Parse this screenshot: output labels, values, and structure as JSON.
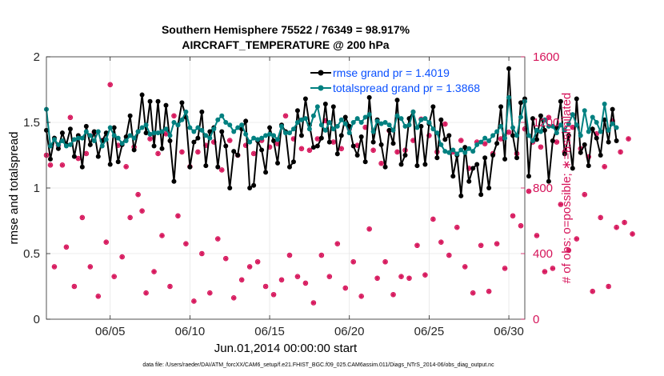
{
  "chart_data": {
    "type": "line",
    "title_line1": "Southern Hemisphere 75522 / 76349 = 98.917%",
    "title_line2": "AIRCRAFT_TEMPERATURE @ 200 hPa",
    "ylabel": "rmse and totalspread",
    "ylabel_right": "# of obs: o=possible; ∗=assimilated",
    "xlabel": "Jun.01,2014 00:00:00 start",
    "footnote": "data file: /Users/raeder/DAI/ATM_forcXX/CAM6_setup/f.e21.FHIST_BGC.f09_025.CAM6assim.011/Diags_NTrS_2014-06/obs_diag_output.nc",
    "xlim": [
      1.0,
      31.0
    ],
    "ylim": [
      0,
      2
    ],
    "ylim_right": [
      0,
      1600
    ],
    "x_ticks": [
      5,
      10,
      15,
      20,
      25,
      30
    ],
    "x_tick_labels": [
      "06/05",
      "06/10",
      "06/15",
      "06/20",
      "06/25",
      "06/30"
    ],
    "y_tick_labels": [
      "0",
      "0.5",
      "1",
      "1.5",
      "2"
    ],
    "y_ticks": [
      0,
      0.5,
      1,
      1.5,
      2
    ],
    "y_right_tick_labels": [
      "0",
      "400",
      "800",
      "1200",
      "1600"
    ],
    "y_right_ticks": [
      0,
      400,
      800,
      1200,
      1600
    ],
    "x_start": 1.0,
    "x_step": 0.25,
    "grid": true,
    "legend_position": "top-right",
    "series": [
      {
        "name": "rmse grand pr = 1.4019",
        "color": "#000000",
        "marker": "circle",
        "values": [
          1.44,
          1.22,
          1.38,
          1.3,
          1.42,
          1.33,
          1.45,
          1.24,
          1.4,
          1.16,
          1.47,
          1.33,
          1.43,
          1.24,
          1.36,
          1.42,
          1.18,
          1.46,
          1.2,
          1.33,
          1.39,
          1.55,
          1.29,
          1.43,
          1.71,
          1.42,
          1.66,
          1.32,
          1.66,
          1.3,
          1.63,
          1.36,
          1.05,
          1.48,
          1.65,
          1.54,
          1.16,
          1.35,
          1.38,
          1.58,
          1.17,
          1.43,
          1.46,
          1.16,
          1.43,
          1.32,
          1.0,
          1.28,
          1.25,
          1.45,
          1.51,
          1.0,
          1.02,
          1.36,
          1.29,
          1.12,
          1.46,
          1.36,
          1.19,
          1.48,
          1.43,
          1.16,
          1.2,
          1.59,
          1.4,
          1.68,
          1.48,
          1.31,
          1.32,
          1.38,
          1.64,
          1.35,
          1.62,
          1.26,
          1.4,
          1.54,
          1.47,
          1.32,
          1.25,
          1.39,
          1.2,
          1.69,
          1.35,
          1.52,
          1.33,
          1.16,
          1.44,
          1.34,
          1.67,
          1.18,
          1.25,
          1.53,
          1.58,
          1.17,
          1.47,
          1.18,
          1.49,
          1.62,
          1.23,
          1.52,
          1.37,
          1.4,
          1.09,
          1.25,
          0.94,
          1.31,
          1.05,
          1.15,
          1.18,
          0.95,
          1.23,
          1.0,
          1.25,
          1.34,
          1.62,
          1.22,
          1.91,
          1.4,
          1.23,
          1.65,
          1.68,
          1.09,
          1.53,
          1.37,
          1.55,
          1.44,
          1.05,
          1.36,
          1.46,
          1.66,
          1.26,
          1.4,
          1.15,
          1.68,
          1.27,
          1.33,
          1.17,
          1.45,
          1.38,
          1.25,
          1.52,
          1.35,
          1.6,
          1.36
        ]
      },
      {
        "name": "totalspread grand pr = 1.3868",
        "color": "#008080",
        "marker": "circle",
        "values": [
          1.6,
          1.32,
          1.37,
          1.33,
          1.36,
          1.32,
          1.33,
          1.37,
          1.38,
          1.38,
          1.43,
          1.4,
          1.36,
          1.43,
          1.32,
          1.37,
          1.46,
          1.4,
          1.38,
          1.34,
          1.36,
          1.4,
          1.38,
          1.43,
          1.46,
          1.48,
          1.41,
          1.42,
          1.42,
          1.43,
          1.45,
          1.4,
          1.5,
          1.48,
          1.52,
          1.58,
          1.46,
          1.43,
          1.46,
          1.44,
          1.4,
          1.38,
          1.45,
          1.52,
          1.55,
          1.5,
          1.48,
          1.43,
          1.46,
          1.48,
          1.41,
          1.35,
          1.38,
          1.37,
          1.38,
          1.4,
          1.41,
          1.4,
          1.37,
          1.47,
          1.42,
          1.42,
          1.45,
          1.5,
          1.52,
          1.53,
          1.45,
          1.55,
          1.62,
          1.48,
          1.44,
          1.5,
          1.45,
          1.47,
          1.52,
          1.49,
          1.42,
          1.5,
          1.53,
          1.5,
          1.54,
          1.56,
          1.43,
          1.51,
          1.49,
          1.5,
          1.48,
          1.44,
          1.55,
          1.53,
          1.47,
          1.48,
          1.58,
          1.46,
          1.52,
          1.53,
          1.5,
          1.45,
          1.42,
          1.33,
          1.28,
          1.27,
          1.29,
          1.26,
          1.29,
          1.27,
          1.3,
          1.28,
          1.33,
          1.35,
          1.38,
          1.36,
          1.4,
          1.43,
          1.47,
          1.38,
          1.69,
          1.46,
          1.4,
          1.54,
          1.66,
          1.4,
          1.36,
          1.44,
          1.43,
          1.52,
          1.47,
          1.47,
          1.42,
          1.48,
          1.44,
          1.49,
          1.56,
          1.48,
          1.4,
          1.59,
          1.43,
          1.54,
          1.5,
          1.43,
          1.64,
          1.44,
          1.49,
          1.46
        ]
      },
      {
        "name": "obs possible",
        "color": "#d6145a",
        "marker": "o",
        "axis": "right",
        "values": [
          1000,
          940,
          320,
          1060,
          940,
          440,
          1230,
          200,
          980,
          620,
          1010,
          320,
          1140,
          140,
          1090,
          470,
          1430,
          260,
          1060,
          380,
          930,
          620,
          1050,
          760,
          660,
          160,
          1100,
          290,
          1010,
          510,
          1130,
          200,
          1240,
          630,
          1020,
          460,
          930,
          110,
          1020,
          400,
          1060,
          160,
          1080,
          490,
          910,
          370,
          1090,
          130,
          1000,
          240,
          1060,
          320,
          1010,
          350,
          1090,
          200,
          1050,
          150,
          1070,
          240,
          1240,
          390,
          1100,
          260,
          1040,
          220,
          1030,
          100,
          1100,
          390,
          1210,
          260,
          1080,
          460,
          1040,
          190,
          1160,
          350,
          1060,
          140,
          1170,
          550,
          1030,
          250,
          950,
          350,
          1150,
          150,
          1020,
          260,
          1030,
          250,
          1090,
          450,
          1220,
          270,
          1120,
          610,
          1020,
          470,
          1190,
          390,
          1020,
          560,
          1090,
          320,
          920,
          160,
          1080,
          450,
          1070,
          170,
          1010,
          460,
          1100,
          310,
          1140,
          630,
          1010,
          570,
          1160,
          780,
          1080,
          510,
          1050,
          290,
          1230,
          310,
          1080,
          700,
          1020,
          420,
          1170,
          490,
          1040,
          760,
          990,
          170,
          1130,
          620,
          930,
          200,
          1210,
          560,
          1020,
          590,
          1100,
          520
        ]
      },
      {
        "name": "obs assimilated",
        "color": "#d6145a",
        "marker": "asterisk",
        "axis": "right",
        "values": [
          1000,
          940,
          320,
          1060,
          940,
          440,
          1230,
          200,
          980,
          620,
          1010,
          320,
          1140,
          140,
          1090,
          470,
          1430,
          260,
          1060,
          380,
          930,
          620,
          1050,
          760,
          660,
          160,
          1100,
          290,
          1010,
          510,
          1130,
          200,
          1240,
          630,
          1020,
          460,
          930,
          110,
          1020,
          400,
          1060,
          160,
          1080,
          490,
          910,
          370,
          1090,
          130,
          1000,
          240,
          1060,
          320,
          1010,
          350,
          1090,
          200,
          1050,
          150,
          1070,
          240,
          1240,
          390,
          1100,
          260,
          1040,
          220,
          1030,
          100,
          1100,
          390,
          1210,
          260,
          1080,
          460,
          1040,
          190,
          1160,
          350,
          1060,
          140,
          1170,
          550,
          1030,
          250,
          950,
          350,
          1150,
          150,
          1020,
          260,
          1030,
          250,
          1090,
          450,
          1220,
          270,
          1120,
          610,
          1020,
          470,
          1190,
          390,
          1020,
          560,
          1090,
          320,
          920,
          160,
          1080,
          450,
          1070,
          170,
          1010,
          460,
          1100,
          310,
          1140,
          630,
          1010,
          570,
          1160,
          780,
          1080,
          510,
          1050,
          290,
          1230,
          310,
          1080,
          700,
          1020,
          420,
          1170,
          490,
          1040,
          760,
          990,
          170,
          1130,
          620,
          930,
          200,
          1210,
          560,
          1020,
          590,
          1100,
          520
        ]
      }
    ]
  }
}
